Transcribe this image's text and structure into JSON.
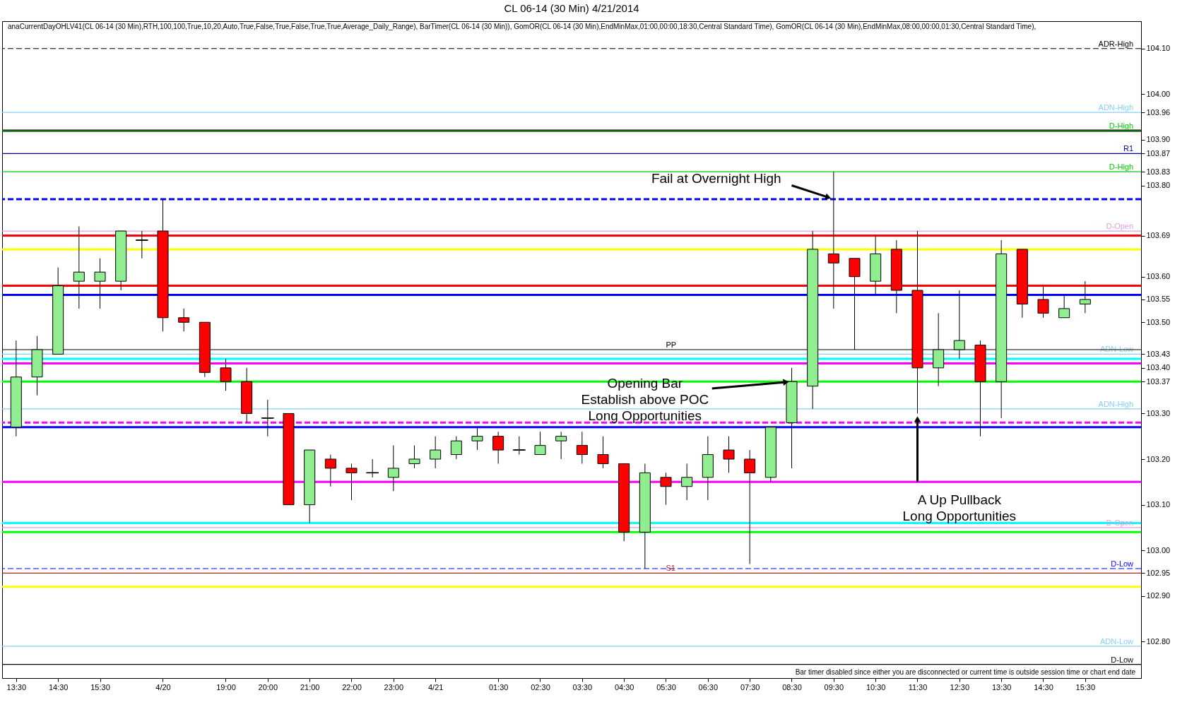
{
  "chart_data": {
    "type": "candlestick",
    "title": "CL 06-14 (30 Min)  4/21/2014",
    "categories": [
      "13:30",
      null,
      "14:30",
      null,
      "15:30",
      null,
      null,
      "4/20",
      null,
      null,
      "19:00",
      null,
      "20:00",
      null,
      "21:00",
      null,
      "22:00",
      null,
      "23:00",
      null,
      "4/21",
      null,
      null,
      "01:30",
      null,
      "02:30",
      null,
      "03:30",
      null,
      "04:30",
      null,
      "05:30",
      null,
      "06:30",
      null,
      "07:30",
      null,
      "08:30",
      null,
      "09:30",
      null,
      "10:30",
      null,
      "11:30",
      null,
      "12:30",
      null,
      "13:30",
      null,
      "14:30",
      null,
      "15:30",
      null,
      null
    ],
    "ohlc": [
      [
        103.27,
        103.46,
        103.25,
        103.38
      ],
      [
        103.38,
        103.47,
        103.34,
        103.44
      ],
      [
        103.43,
        103.62,
        103.43,
        103.58
      ],
      [
        103.59,
        103.71,
        103.53,
        103.61
      ],
      [
        103.59,
        103.64,
        103.53,
        103.61
      ],
      [
        103.59,
        103.7,
        103.57,
        103.7
      ],
      [
        103.68,
        103.7,
        103.64,
        103.68
      ],
      [
        103.7,
        103.77,
        103.48,
        103.51
      ],
      [
        103.51,
        103.53,
        103.48,
        103.5
      ],
      [
        103.5,
        103.5,
        103.38,
        103.39
      ],
      [
        103.4,
        103.42,
        103.35,
        103.37
      ],
      [
        103.37,
        103.4,
        103.28,
        103.3
      ],
      [
        103.29,
        103.33,
        103.25,
        103.29
      ],
      [
        103.3,
        103.3,
        103.1,
        103.1
      ],
      [
        103.1,
        103.22,
        103.06,
        103.22
      ],
      [
        103.2,
        103.21,
        103.14,
        103.18
      ],
      [
        103.18,
        103.19,
        103.11,
        103.17
      ],
      [
        103.17,
        103.2,
        103.16,
        103.17
      ],
      [
        103.16,
        103.23,
        103.13,
        103.18
      ],
      [
        103.19,
        103.23,
        103.18,
        103.2
      ],
      [
        103.2,
        103.25,
        103.18,
        103.22
      ],
      [
        103.21,
        103.25,
        103.2,
        103.24
      ],
      [
        103.24,
        103.27,
        103.22,
        103.25
      ],
      [
        103.25,
        103.26,
        103.19,
        103.22
      ],
      [
        103.22,
        103.25,
        103.21,
        103.22
      ],
      [
        103.21,
        103.26,
        103.21,
        103.23
      ],
      [
        103.24,
        103.26,
        103.2,
        103.25
      ],
      [
        103.23,
        103.26,
        103.19,
        103.21
      ],
      [
        103.21,
        103.25,
        103.18,
        103.19
      ],
      [
        103.19,
        103.19,
        103.02,
        103.04
      ],
      [
        103.04,
        103.19,
        102.96,
        103.17
      ],
      [
        103.16,
        103.17,
        103.1,
        103.14
      ],
      [
        103.14,
        103.19,
        103.11,
        103.16
      ],
      [
        103.16,
        103.25,
        103.11,
        103.21
      ],
      [
        103.22,
        103.25,
        103.17,
        103.2
      ],
      [
        103.2,
        103.22,
        102.97,
        103.17
      ],
      [
        103.16,
        103.27,
        103.15,
        103.27
      ],
      [
        103.28,
        103.4,
        103.18,
        103.37
      ],
      [
        103.36,
        103.7,
        103.31,
        103.66
      ],
      [
        103.65,
        103.83,
        103.53,
        103.63
      ],
      [
        103.64,
        103.64,
        103.44,
        103.6
      ],
      [
        103.59,
        103.69,
        103.56,
        103.65
      ],
      [
        103.66,
        103.68,
        103.52,
        103.57
      ],
      [
        103.57,
        103.7,
        103.3,
        103.4
      ],
      [
        103.4,
        103.52,
        103.36,
        103.44
      ],
      [
        103.44,
        103.57,
        103.42,
        103.46
      ],
      [
        103.45,
        103.46,
        103.25,
        103.37
      ],
      [
        103.37,
        103.68,
        103.29,
        103.65
      ],
      [
        103.66,
        103.66,
        103.51,
        103.54
      ],
      [
        103.55,
        103.58,
        103.51,
        103.52
      ],
      [
        103.51,
        103.56,
        103.51,
        103.53
      ],
      [
        103.54,
        103.59,
        103.52,
        103.55
      ],
      null,
      null
    ],
    "colors": [
      "#90ee90",
      "#90ee90",
      "#90ee90",
      "#90ee90",
      "#90ee90",
      "#90ee90",
      "#000000",
      "#ff0000",
      "#ff0000",
      "#ff0000",
      "#ff0000",
      "#ff0000",
      "#000000",
      "#ff0000",
      "#90ee90",
      "#ff0000",
      "#ff0000",
      "#000000",
      "#90ee90",
      "#90ee90",
      "#90ee90",
      "#90ee90",
      "#90ee90",
      "#ff0000",
      "#000000",
      "#90ee90",
      "#90ee90",
      "#ff0000",
      "#ff0000",
      "#ff0000",
      "#90ee90",
      "#ff0000",
      "#90ee90",
      "#90ee90",
      "#ff0000",
      "#ff0000",
      "#90ee90",
      "#90ee90",
      "#90ee90",
      "#ff0000",
      "#ff0000",
      "#90ee90",
      "#ff0000",
      "#ff0000",
      "#90ee90",
      "#90ee90",
      "#ff0000",
      "#90ee90",
      "#ff0000",
      "#ff0000",
      "#90ee90",
      "#90ee90",
      null,
      null
    ],
    "ylim": [
      102.72,
      104.16
    ],
    "yticks": [
      {
        "value": 102.8,
        "label": "102.80"
      },
      {
        "value": 102.9,
        "label": "102.90"
      },
      102.95,
      {
        "value": 103.0,
        "label": "103.00"
      },
      {
        "value": 103.1,
        "label": "103.10"
      },
      {
        "value": 103.2,
        "label": "103.20"
      },
      {
        "value": 103.3,
        "label": "103.30"
      },
      103.37,
      {
        "value": 103.4,
        "label": "103.40"
      },
      103.43,
      {
        "value": 103.5,
        "label": "103.50"
      },
      103.55,
      {
        "value": 103.6,
        "label": "103.60"
      },
      103.69,
      {
        "value": 103.8,
        "label": "103.80"
      },
      103.83,
      103.87,
      {
        "value": 103.9,
        "label": "103.90"
      },
      103.96,
      {
        "value": 104.0,
        "label": "104.00"
      },
      {
        "value": 104.1,
        "label": "104.10"
      }
    ],
    "ref_lines": [
      {
        "axis": "y",
        "value": 104.1,
        "label": "ADR-High",
        "color": "#000000",
        "line_style": "dashed"
      },
      {
        "axis": "y",
        "value": 103.96,
        "label": "ADN-High",
        "color": "#87cefa"
      },
      {
        "axis": "y",
        "value": 103.92,
        "color": "#000000"
      },
      {
        "axis": "y",
        "value": 103.92,
        "label": "D-High",
        "color": "#00cc00"
      },
      {
        "axis": "y",
        "value": 103.87,
        "label": "R1",
        "color": "#00008b"
      },
      {
        "axis": "y",
        "value": 103.83,
        "label": "D-High",
        "color": "#00cc00"
      },
      {
        "axis": "y",
        "value": 103.77,
        "color": "#0000ff",
        "line_style": "dashed"
      },
      {
        "axis": "y",
        "value": 103.7,
        "label": "D-Open",
        "color": "#dda0dd"
      },
      {
        "axis": "y",
        "value": 103.69,
        "color": "#ff0000"
      },
      {
        "axis": "y",
        "value": 103.66,
        "color": "#ffff00"
      },
      {
        "axis": "y",
        "value": 103.58,
        "color": "#ff0000"
      },
      {
        "axis": "y",
        "value": 103.56,
        "color": "#0000ff"
      },
      {
        "axis": "y",
        "value": 103.43,
        "label": "ADN-Low",
        "color": "#87cefa"
      },
      {
        "axis": "y",
        "value": 103.44,
        "label": "PP",
        "color": "#000000"
      },
      {
        "axis": "y",
        "value": 103.42,
        "color": "#00ffff"
      },
      {
        "axis": "y",
        "value": 103.41,
        "color": "#ff00ff"
      },
      {
        "axis": "y",
        "value": 103.37,
        "color": "#00ff00"
      },
      {
        "axis": "y",
        "value": 103.31,
        "label": "ADN-High",
        "color": "#87cefa"
      },
      {
        "axis": "y",
        "value": 103.28,
        "color": "#ff00ff",
        "line_style": "dashed"
      },
      {
        "axis": "y",
        "value": 103.27,
        "color": "#0000ff"
      },
      {
        "axis": "y",
        "value": 103.15,
        "color": "#ff00ff"
      },
      {
        "axis": "y",
        "value": 103.06,
        "color": "#00ffff"
      },
      {
        "axis": "y",
        "value": 103.05,
        "label": "D-Open",
        "color": "#dda0dd"
      },
      {
        "axis": "y",
        "value": 103.04,
        "color": "#00ff00"
      },
      {
        "axis": "y",
        "value": 102.96,
        "label": "D-Low",
        "color": "#0000ff",
        "line_style": "dashed"
      },
      {
        "axis": "y",
        "value": 102.95,
        "label": "S1",
        "color": "#b22222"
      },
      {
        "axis": "y",
        "value": 102.92,
        "color": "#ffff00"
      },
      {
        "axis": "y",
        "value": 102.79,
        "label": "ADN-Low",
        "color": "#87cefa"
      },
      {
        "axis": "y",
        "value": 102.75,
        "label": "D-Low",
        "color": "#000000"
      }
    ],
    "annotations": [
      "anaCurrentDayOHLV41(CL 06-14 (30 Min),RTH,100,100,True,10,20,Auto,True,False,True,False,True,True,Average_Daily_Range), BarTimer(CL 06-14 (30 Min)), GomOR(CL 06-14 (30 Min),EndMinMax,01:00,00:00,18:30,Central Standard Time), GomOR(CL 06-14 (30 Min),EndMinMax,08:00,00:00,01:30,Central Standard Time),",
      "Bar timer disabled since either you are disconnected or current time is outside session time or chart end date",
      {
        "text": "Fail at Overnight High",
        "x": "09:30",
        "y": 103.77
      },
      {
        "text": "Opening Bar\nEstablish above POC\nLong Opportunities",
        "x": "08:30",
        "y": 103.37
      },
      {
        "text": "A Up Pullback\nLong Opportunities",
        "x": "11:30",
        "y": 103.3
      }
    ]
  }
}
